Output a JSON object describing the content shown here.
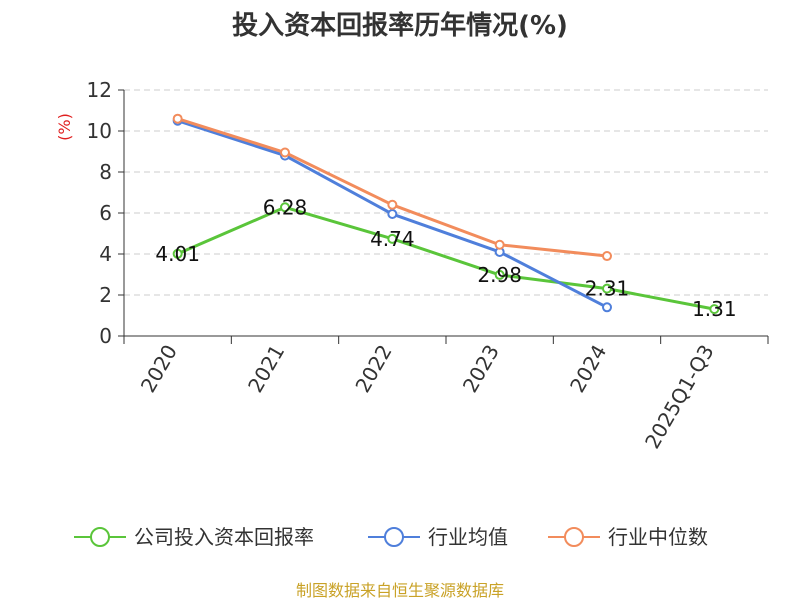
{
  "chart_data": {
    "type": "line",
    "title": "投入资本回报率历年情况(%)",
    "ylabel": "(%)",
    "xlabel": "",
    "ylim": [
      0,
      12
    ],
    "yticks": [
      0,
      2,
      4,
      6,
      8,
      10,
      12
    ],
    "categories": [
      "2020",
      "2021",
      "2022",
      "2023",
      "2024",
      "2025Q1-Q3"
    ],
    "grid": true,
    "legend_position": "bottom",
    "series": [
      {
        "name": "公司投入资本回报率",
        "color": "#5ac53a",
        "values": [
          4.01,
          6.28,
          4.74,
          2.98,
          2.31,
          1.31
        ],
        "labels": [
          "4.01",
          "6.28",
          "4.74",
          "2.98",
          "2.31",
          "1.31"
        ]
      },
      {
        "name": "行业均值",
        "color": "#4f7fdb",
        "values": [
          10.5,
          8.8,
          5.95,
          4.1,
          1.4,
          null
        ]
      },
      {
        "name": "行业中位数",
        "color": "#f28c5c",
        "values": [
          10.6,
          8.95,
          6.4,
          4.45,
          3.9,
          null
        ]
      }
    ],
    "source": "制图数据来自恒生聚源数据库"
  }
}
